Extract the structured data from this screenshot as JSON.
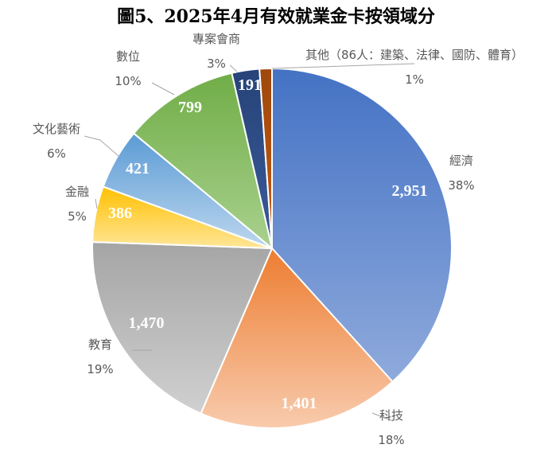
{
  "chart_data": {
    "type": "pie",
    "title": "圖5、2025年4月有效就業金卡按領域分",
    "slices": [
      {
        "category": "經濟",
        "value": 2951,
        "value_label": "2,951",
        "percent_label": "38%",
        "color_top": "#4472c4",
        "color_bottom": "#8faadc"
      },
      {
        "category": "科技",
        "value": 1401,
        "value_label": "1,401",
        "percent_label": "18%",
        "color_top": "#ed7d31",
        "color_bottom": "#f8cbad"
      },
      {
        "category": "教育",
        "value": 1470,
        "value_label": "1,470",
        "percent_label": "19%",
        "color_top": "#a5a5a5",
        "color_bottom": "#d0d0d0"
      },
      {
        "category": "金融",
        "value": 386,
        "value_label": "386",
        "percent_label": "5%",
        "color_top": "#ffc000",
        "color_bottom": "#ffe699"
      },
      {
        "category": "文化藝術",
        "value": 421,
        "value_label": "421",
        "percent_label": "6%",
        "color_top": "#5b9bd5",
        "color_bottom": "#bdd7ee"
      },
      {
        "category": "數位",
        "value": 799,
        "value_label": "799",
        "percent_label": "10%",
        "color_top": "#70ad47",
        "color_bottom": "#a9d18e"
      },
      {
        "category": "專案會商",
        "value": 191,
        "value_label": "191",
        "percent_label": "3%",
        "color_top": "#264478",
        "color_bottom": "#3b5a9a"
      },
      {
        "category": "其他（86人：建築、法律、國防、體育）",
        "value": 86,
        "value_label": "",
        "percent_label": "1%",
        "color_top": "#9e480e",
        "color_bottom": "#c55a11"
      }
    ]
  }
}
